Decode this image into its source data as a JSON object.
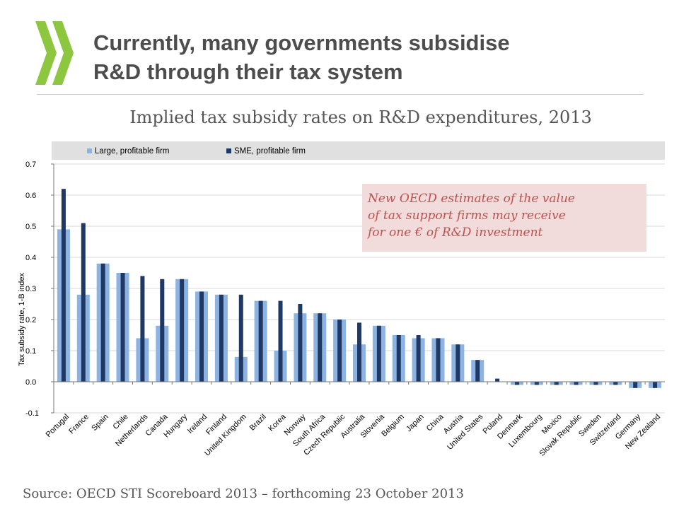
{
  "slide": {
    "title_line1": "Currently, many governments subsidise",
    "title_line2": "R&D through their tax system",
    "subtitle": "Implied tax subsidy rates on R&D expenditures, 2013",
    "source": "Source: OECD STI Scoreboard 2013 – forthcoming 23 October 2013"
  },
  "colors": {
    "large": "#8db3e2",
    "sme": "#1f3864",
    "title": "#4d4d4d",
    "logo": "#8dc63f",
    "callout_bg": "#f2dcdb",
    "callout_text": "#c0504d"
  },
  "chart_data": {
    "type": "bar",
    "ylabel": "Tax subsidy rate, 1-B index",
    "ylim": [
      -0.1,
      0.7
    ],
    "yticks": [
      -0.1,
      0.0,
      0.1,
      0.2,
      0.3,
      0.4,
      0.5,
      0.6,
      0.7
    ],
    "ytick_labels": [
      "-0.1",
      "0.0",
      "0.1",
      "0.2",
      "0.3",
      "0.4",
      "0.5",
      "0.6",
      "0.7"
    ],
    "grid": true,
    "legend_position": "top",
    "annotation": "New OECD estimates of  the value of tax support firms may receive for one € of R&D investment",
    "categories": [
      "Portugal",
      "France",
      "Spain",
      "Chile",
      "Netherlands",
      "Canada",
      "Hungary",
      "Ireland",
      "Finland",
      "United Kingdom",
      "Brazil",
      "Korea",
      "Norway",
      "South Africa",
      "Czech Republic",
      "Australia",
      "Slovenia",
      "Belgium",
      "Japan",
      "China",
      "Austria",
      "United States",
      "Poland",
      "Denmark",
      "Luxembourg",
      "Mexico",
      "Slovak Republic",
      "Sweden",
      "Switzerland",
      "Germany",
      "New Zealand"
    ],
    "series": [
      {
        "name": "Large, profitable firm",
        "values": [
          0.49,
          0.28,
          0.38,
          0.35,
          0.14,
          0.18,
          0.33,
          0.29,
          0.28,
          0.08,
          0.26,
          0.1,
          0.22,
          0.22,
          0.2,
          0.12,
          0.18,
          0.15,
          0.14,
          0.14,
          0.12,
          0.07,
          0.0,
          -0.01,
          -0.01,
          -0.01,
          -0.01,
          -0.01,
          -0.01,
          -0.02,
          -0.02
        ]
      },
      {
        "name": "SME, profitable firm",
        "values": [
          0.62,
          0.51,
          0.38,
          0.35,
          0.34,
          0.33,
          0.33,
          0.29,
          0.28,
          0.28,
          0.26,
          0.26,
          0.25,
          0.22,
          0.2,
          0.19,
          0.18,
          0.15,
          0.15,
          0.14,
          0.12,
          0.07,
          0.01,
          -0.01,
          -0.01,
          -0.01,
          -0.01,
          -0.01,
          -0.01,
          -0.02,
          -0.02
        ]
      }
    ]
  }
}
